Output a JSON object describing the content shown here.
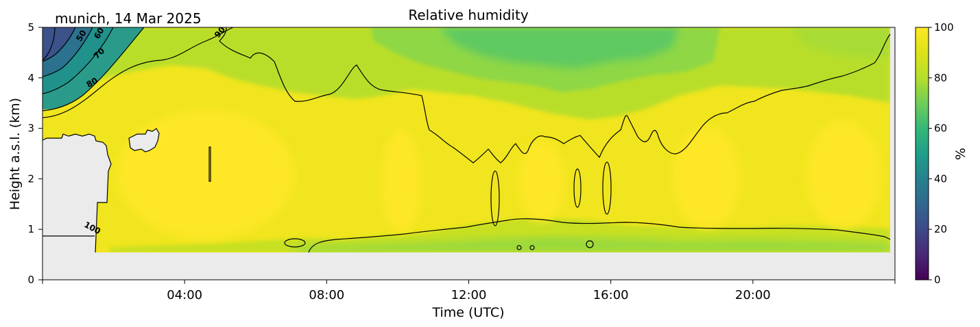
{
  "chart_data": {
    "type": "heatmap",
    "title": "Relative humidity",
    "subtitle": "munich, 14 Mar 2025",
    "xlabel": "Time (UTC)",
    "ylabel": "Height a.s.l. (km)",
    "xlim_hours": [
      0,
      24
    ],
    "ylim_km": [
      0,
      5
    ],
    "x_ticks": [
      {
        "hour": 4,
        "label": "04:00"
      },
      {
        "hour": 8,
        "label": "08:00"
      },
      {
        "hour": 12,
        "label": "12:00"
      },
      {
        "hour": 16,
        "label": "16:00"
      },
      {
        "hour": 20,
        "label": "20:00"
      }
    ],
    "y_ticks": [
      {
        "value": 0,
        "label": "0"
      },
      {
        "value": 1,
        "label": "1"
      },
      {
        "value": 2,
        "label": "2"
      },
      {
        "value": 3,
        "label": "3"
      },
      {
        "value": 4,
        "label": "4"
      },
      {
        "value": 5,
        "label": "5"
      }
    ],
    "colorbar": {
      "label": "%",
      "colormap": "viridis",
      "range": [
        0,
        100
      ],
      "ticks": [
        {
          "value": 0,
          "label": "0"
        },
        {
          "value": 20,
          "label": "20"
        },
        {
          "value": 40,
          "label": "40"
        },
        {
          "value": 60,
          "label": "60"
        },
        {
          "value": 80,
          "label": "80"
        },
        {
          "value": 100,
          "label": "100"
        }
      ]
    },
    "contour_labels": [
      {
        "text": "50",
        "hour": 1.1,
        "km": 4.83,
        "angle": -60
      },
      {
        "text": "60",
        "hour": 1.6,
        "km": 4.88,
        "angle": -60
      },
      {
        "text": "70",
        "hour": 1.6,
        "km": 4.48,
        "angle": -45
      },
      {
        "text": "80",
        "hour": 1.4,
        "km": 3.9,
        "angle": -30
      },
      {
        "text": "90",
        "hour": 5.0,
        "km": 4.9,
        "angle": -50
      },
      {
        "text": "100",
        "hour": 1.4,
        "km": 1.02,
        "angle": 28
      }
    ],
    "data_coverage": {
      "lowest_km": 0.55,
      "missing_color": "#ebebeb"
    },
    "contour_levels": [
      40,
      50,
      60,
      70,
      80,
      90,
      100
    ],
    "humidity_estimates_percent": [
      {
        "hour": 0.5,
        "km": 4.8,
        "value": 20
      },
      {
        "hour": 1.0,
        "km": 4.3,
        "value": 55
      },
      {
        "hour": 1.5,
        "km": 3.7,
        "value": 80
      },
      {
        "hour": 3.0,
        "km": 2.0,
        "value": 99
      },
      {
        "hour": 9.0,
        "km": 2.0,
        "value": 98
      },
      {
        "hour": 13.0,
        "km": 4.6,
        "value": 75
      },
      {
        "hour": 14.0,
        "km": 2.2,
        "value": 97
      },
      {
        "hour": 19.5,
        "km": 2.0,
        "value": 99
      },
      {
        "hour": 23.0,
        "km": 4.5,
        "value": 88
      }
    ],
    "grid": false
  }
}
